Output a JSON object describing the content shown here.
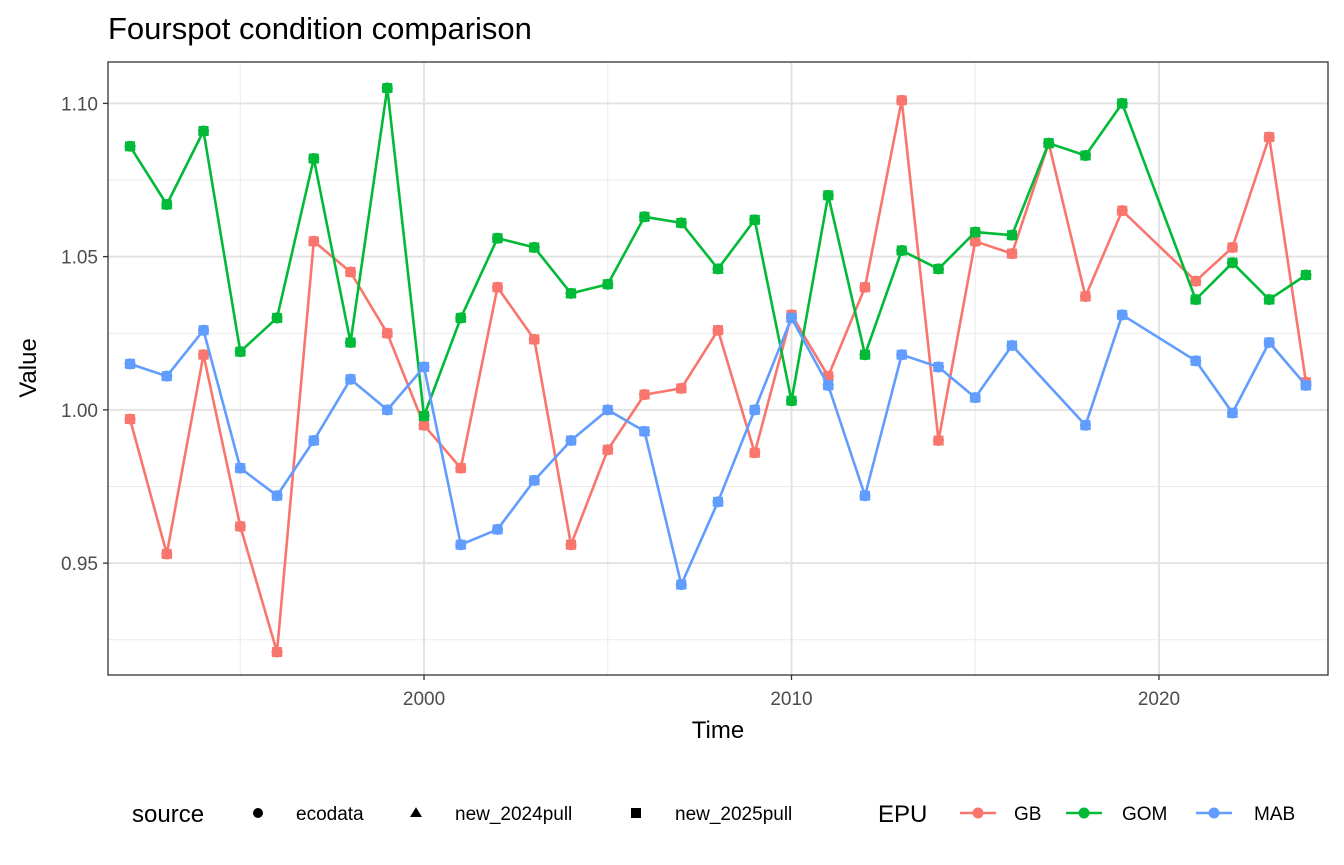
{
  "chart_data": {
    "type": "line",
    "title": "Fourspot condition comparison",
    "xlabel": "Time",
    "ylabel": "Value",
    "xlim": [
      1991.4,
      2024.6
    ],
    "ylim": [
      0.9135,
      1.1135
    ],
    "x_ticks": [
      2000,
      2010,
      2020
    ],
    "x_tick_labels": [
      "2000",
      "2010",
      "2020"
    ],
    "y_ticks": [
      0.95,
      1.0,
      1.05,
      1.1
    ],
    "y_tick_labels": [
      "0.95",
      "1.00",
      "1.05",
      "1.10"
    ],
    "grid": true,
    "legend_position": "bottom",
    "shape_legend": {
      "title": "source",
      "items": [
        {
          "label": "ecodata",
          "shape": "circle"
        },
        {
          "label": "new_2024pull",
          "shape": "triangle"
        },
        {
          "label": "new_2025pull",
          "shape": "square"
        }
      ]
    },
    "color_legend": {
      "title": "EPU",
      "items": [
        {
          "label": "GB",
          "color": "#F8766D"
        },
        {
          "label": "GOM",
          "color": "#00BA38"
        },
        {
          "label": "MAB",
          "color": "#619CFF"
        }
      ]
    },
    "series": [
      {
        "name": "GB",
        "color": "#F8766D",
        "x": [
          1992,
          1993,
          1994,
          1995,
          1996,
          1997,
          1998,
          1999,
          2000,
          2001,
          2002,
          2003,
          2004,
          2005,
          2006,
          2007,
          2008,
          2009,
          2010,
          2011,
          2012,
          2013,
          2014,
          2015,
          2016,
          2017,
          2018,
          2019,
          2021,
          2022,
          2023,
          2024
        ],
        "values": [
          0.997,
          0.953,
          1.018,
          0.962,
          0.921,
          1.055,
          1.045,
          1.025,
          0.995,
          0.981,
          1.04,
          1.023,
          0.956,
          0.987,
          1.005,
          1.007,
          1.026,
          0.986,
          1.031,
          1.011,
          1.04,
          1.101,
          0.99,
          1.055,
          1.051,
          1.087,
          1.037,
          1.065,
          1.042,
          1.053,
          1.089,
          1.009
        ]
      },
      {
        "name": "GOM",
        "color": "#00BA38",
        "x": [
          1992,
          1993,
          1994,
          1995,
          1996,
          1997,
          1998,
          1999,
          2000,
          2001,
          2002,
          2003,
          2004,
          2005,
          2006,
          2007,
          2008,
          2009,
          2010,
          2011,
          2012,
          2013,
          2014,
          2015,
          2016,
          2017,
          2018,
          2019,
          2021,
          2022,
          2023,
          2024
        ],
        "values": [
          1.086,
          1.067,
          1.091,
          1.019,
          1.03,
          1.082,
          1.022,
          1.105,
          0.998,
          1.03,
          1.056,
          1.053,
          1.038,
          1.041,
          1.063,
          1.061,
          1.046,
          1.062,
          1.003,
          1.07,
          1.018,
          1.052,
          1.046,
          1.058,
          1.057,
          1.087,
          1.083,
          1.1,
          1.036,
          1.048,
          1.036,
          1.044
        ]
      },
      {
        "name": "MAB",
        "color": "#619CFF",
        "x": [
          1992,
          1993,
          1994,
          1995,
          1996,
          1997,
          1998,
          1999,
          2000,
          2001,
          2002,
          2003,
          2004,
          2005,
          2006,
          2007,
          2008,
          2009,
          2010,
          2011,
          2012,
          2013,
          2014,
          2015,
          2016,
          2018,
          2019,
          2021,
          2022,
          2023,
          2024
        ],
        "values": [
          1.015,
          1.011,
          1.026,
          0.981,
          0.972,
          0.99,
          1.01,
          1.0,
          1.014,
          0.956,
          0.961,
          0.977,
          0.99,
          1.0,
          0.993,
          0.943,
          0.97,
          1.0,
          1.03,
          1.008,
          0.972,
          1.018,
          1.014,
          1.004,
          1.021,
          0.995,
          1.031,
          1.016,
          0.999,
          1.022,
          1.008
        ]
      }
    ]
  }
}
